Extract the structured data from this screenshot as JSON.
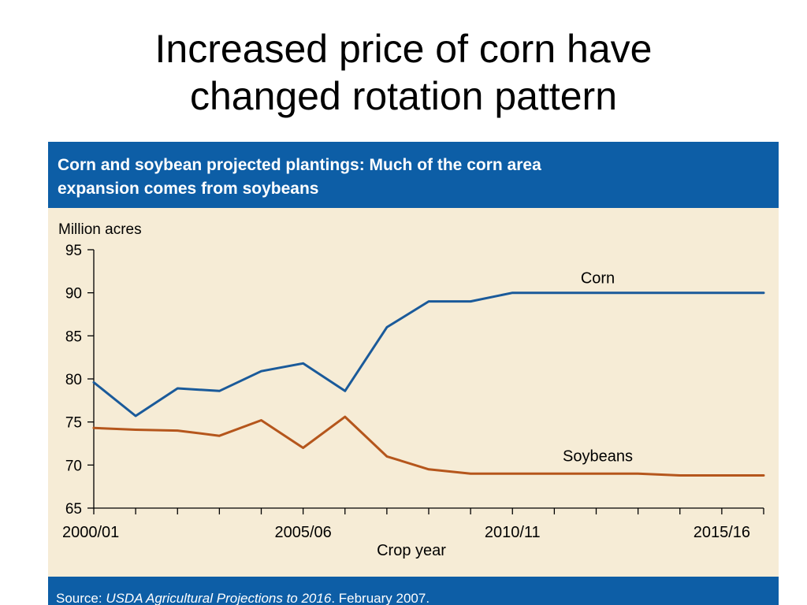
{
  "slide": {
    "title_line1": "Increased price of corn have",
    "title_line2": "changed rotation pattern"
  },
  "header": {
    "line1": "Corn and soybean projected plantings:  Much of the corn area",
    "line2": "expansion comes from soybeans"
  },
  "footer": {
    "prefix": "Source:  ",
    "publication": "USDA Agricultural Projections to 2016",
    "suffix": ". February 2007."
  },
  "colors": {
    "panel_background": "#f6ecd6",
    "header_background": "#0d5ea6",
    "corn": "#1a5a9a",
    "soybeans": "#b5561c"
  },
  "chart_data": {
    "type": "line",
    "title": "Corn and soybean projected plantings:  Much of the corn area expansion comes from soybeans",
    "xlabel": "Crop year",
    "ylabel": "Million acres",
    "ylim": [
      65,
      95
    ],
    "yticks": [
      65,
      70,
      75,
      80,
      85,
      90,
      95
    ],
    "x": [
      "2000/01",
      "2001/02",
      "2002/03",
      "2003/04",
      "2004/05",
      "2005/06",
      "2006/07",
      "2007/08",
      "2008/09",
      "2009/10",
      "2010/11",
      "2011/12",
      "2012/13",
      "2013/14",
      "2014/15",
      "2015/16",
      "2016/17"
    ],
    "xtick_labels": [
      "2000/01",
      "2005/06",
      "2010/11",
      "2015/16"
    ],
    "grid": false,
    "series": [
      {
        "name": "Corn",
        "values": [
          79.6,
          75.7,
          78.9,
          78.6,
          80.9,
          81.8,
          78.6,
          86.0,
          89.0,
          89.0,
          90.0,
          90.0,
          90.0,
          90.0,
          90.0,
          90.0,
          90.0
        ]
      },
      {
        "name": "Soybeans",
        "values": [
          74.3,
          74.1,
          74.0,
          73.4,
          75.2,
          72.0,
          75.6,
          71.0,
          69.5,
          69.0,
          69.0,
          69.0,
          69.0,
          69.0,
          68.8,
          68.8,
          68.8
        ]
      }
    ]
  }
}
